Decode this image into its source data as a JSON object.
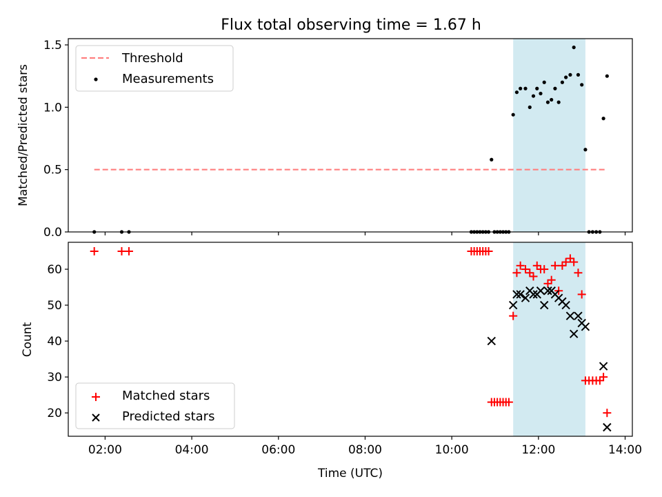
{
  "title": "Flux total observing time = 1.67 h",
  "colors": {
    "threshold": "#ff7f7f",
    "measurement": "#000000",
    "matched": "#ff0000",
    "predicted": "#000000",
    "shade": "#add8e6"
  },
  "chart_data": [
    {
      "type": "scatter",
      "ylabel": "Matched/Predicted stars",
      "xlabel": "",
      "ylim": [
        0,
        1.55
      ],
      "xlim": [
        "01:09",
        "14:10"
      ],
      "yticks": [
        "0.0",
        "0.5",
        "1.0",
        "1.5"
      ],
      "legend": {
        "position": "top-left",
        "entries": [
          "Threshold",
          "Measurements"
        ]
      },
      "shaded_interval": [
        "11:25",
        "13:05"
      ],
      "threshold": {
        "name": "Threshold",
        "y": 0.5,
        "x": [
          "01:45",
          "13:35"
        ]
      },
      "series": [
        {
          "name": "Measurements",
          "points": [
            [
              "01:45",
              0
            ],
            [
              "02:23",
              0
            ],
            [
              "02:33",
              0
            ],
            [
              "10:27",
              0
            ],
            [
              "10:31",
              0
            ],
            [
              "10:35",
              0
            ],
            [
              "10:39",
              0
            ],
            [
              "10:43",
              0
            ],
            [
              "10:47",
              0
            ],
            [
              "10:51",
              0
            ],
            [
              "10:55",
              0.58
            ],
            [
              "10:59",
              0
            ],
            [
              "11:03",
              0
            ],
            [
              "11:07",
              0
            ],
            [
              "11:11",
              0
            ],
            [
              "11:15",
              0
            ],
            [
              "11:19",
              0
            ],
            [
              "11:25",
              0.94
            ],
            [
              "11:30",
              1.12
            ],
            [
              "11:35",
              1.15
            ],
            [
              "11:42",
              1.15
            ],
            [
              "11:48",
              1.0
            ],
            [
              "11:53",
              1.09
            ],
            [
              "11:58",
              1.15
            ],
            [
              "12:03",
              1.11
            ],
            [
              "12:08",
              1.2
            ],
            [
              "12:13",
              1.04
            ],
            [
              "12:18",
              1.06
            ],
            [
              "12:23",
              1.15
            ],
            [
              "12:28",
              1.04
            ],
            [
              "12:33",
              1.2
            ],
            [
              "12:38",
              1.24
            ],
            [
              "12:44",
              1.26
            ],
            [
              "12:49",
              1.48
            ],
            [
              "12:55",
              1.26
            ],
            [
              "13:00",
              1.18
            ],
            [
              "13:05",
              0.66
            ],
            [
              "13:10",
              0
            ],
            [
              "13:15",
              0
            ],
            [
              "13:20",
              0
            ],
            [
              "13:25",
              0
            ],
            [
              "13:30",
              0.91
            ],
            [
              "13:35",
              1.25
            ]
          ]
        }
      ]
    },
    {
      "type": "scatter",
      "ylabel": "Count",
      "xlabel": "Time (UTC)",
      "ylim": [
        13.5,
        67.5
      ],
      "xlim": [
        "01:09",
        "14:10"
      ],
      "yticks": [
        "20",
        "30",
        "40",
        "50",
        "60"
      ],
      "xticks": [
        "02:00",
        "04:00",
        "06:00",
        "08:00",
        "10:00",
        "12:00",
        "14:00"
      ],
      "legend": {
        "position": "bottom-left",
        "entries": [
          "Matched stars",
          "Predicted stars"
        ]
      },
      "shaded_interval": [
        "11:25",
        "13:05"
      ],
      "series": [
        {
          "name": "Matched stars",
          "marker": "+",
          "points": [
            [
              "01:45",
              65
            ],
            [
              "02:23",
              65
            ],
            [
              "02:33",
              65
            ],
            [
              "10:27",
              65
            ],
            [
              "10:31",
              65
            ],
            [
              "10:35",
              65
            ],
            [
              "10:39",
              65
            ],
            [
              "10:43",
              65
            ],
            [
              "10:47",
              65
            ],
            [
              "10:51",
              65
            ],
            [
              "10:55",
              23
            ],
            [
              "10:59",
              23
            ],
            [
              "11:03",
              23
            ],
            [
              "11:07",
              23
            ],
            [
              "11:11",
              23
            ],
            [
              "11:15",
              23
            ],
            [
              "11:19",
              23
            ],
            [
              "11:25",
              47
            ],
            [
              "11:30",
              59
            ],
            [
              "11:35",
              61
            ],
            [
              "11:42",
              60
            ],
            [
              "11:48",
              59
            ],
            [
              "11:53",
              58
            ],
            [
              "11:58",
              61
            ],
            [
              "12:03",
              60
            ],
            [
              "12:08",
              60
            ],
            [
              "12:13",
              56
            ],
            [
              "12:18",
              57
            ],
            [
              "12:23",
              61
            ],
            [
              "12:28",
              54
            ],
            [
              "12:33",
              61
            ],
            [
              "12:38",
              62
            ],
            [
              "12:44",
              63
            ],
            [
              "12:49",
              62
            ],
            [
              "12:55",
              59
            ],
            [
              "13:00",
              53
            ],
            [
              "13:05",
              29
            ],
            [
              "13:10",
              29
            ],
            [
              "13:15",
              29
            ],
            [
              "13:20",
              29
            ],
            [
              "13:25",
              29
            ],
            [
              "13:30",
              30
            ],
            [
              "13:35",
              20
            ]
          ]
        },
        {
          "name": "Predicted stars",
          "marker": "x",
          "points": [
            [
              "10:55",
              40
            ],
            [
              "11:25",
              50
            ],
            [
              "11:30",
              53
            ],
            [
              "11:35",
              53
            ],
            [
              "11:42",
              52
            ],
            [
              "11:48",
              54
            ],
            [
              "11:53",
              53
            ],
            [
              "11:58",
              53
            ],
            [
              "12:03",
              54
            ],
            [
              "12:08",
              50
            ],
            [
              "12:13",
              54
            ],
            [
              "12:18",
              54
            ],
            [
              "12:23",
              53
            ],
            [
              "12:28",
              52
            ],
            [
              "12:33",
              51
            ],
            [
              "12:38",
              50
            ],
            [
              "12:44",
              47
            ],
            [
              "12:49",
              42
            ],
            [
              "12:55",
              47
            ],
            [
              "13:00",
              45
            ],
            [
              "13:05",
              44
            ],
            [
              "13:30",
              33
            ],
            [
              "13:35",
              16
            ]
          ]
        }
      ]
    }
  ]
}
